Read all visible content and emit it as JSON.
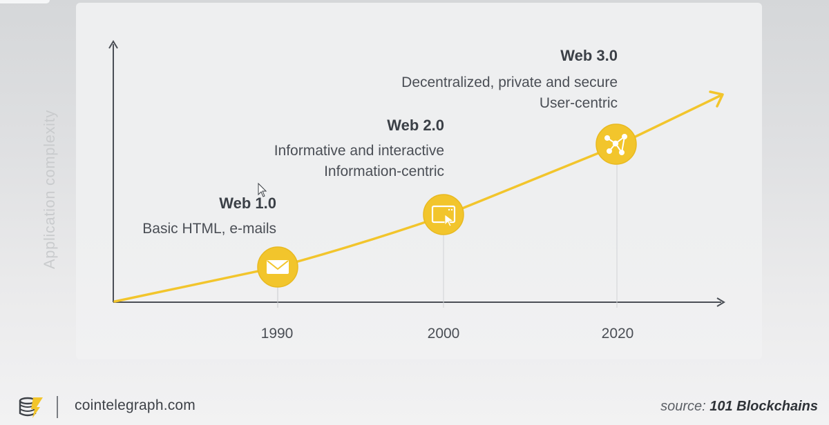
{
  "diagram": {
    "y_axis_label": "Application complexity",
    "eras": [
      {
        "year": "1990",
        "title": "Web 1.0",
        "lines": [
          "Basic HTML, e-mails"
        ],
        "icon": "envelope-icon"
      },
      {
        "year": "2000",
        "title": "Web 2.0",
        "lines": [
          "Informative and interactive",
          "Information-centric"
        ],
        "icon": "browser-cursor-icon"
      },
      {
        "year": "2020",
        "title": "Web 3.0",
        "lines": [
          "Decentralized, private and secure",
          "User-centric"
        ],
        "icon": "network-nodes-icon"
      }
    ]
  },
  "footer": {
    "site": "cointelegraph.com",
    "source_label": "source:",
    "source_name": "101 Blockchains"
  },
  "colors": {
    "accent": "#f2c52c",
    "accent_dark": "#e2b21c",
    "text": "#4a4e55",
    "title": "#3b4047",
    "axis": "#4a4e55",
    "axis_label": "#c9cbcd"
  }
}
